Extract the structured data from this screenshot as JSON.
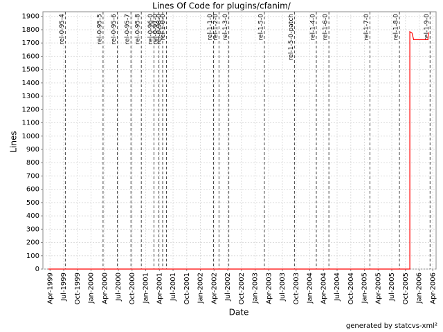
{
  "chart_data": {
    "type": "line",
    "title": "Lines Of Code for plugins/cfanim/",
    "x_label": "Date",
    "y_label": "Lines",
    "footer": "generated by statcvs-xml²",
    "color": "#ff0000",
    "x": [
      1999.22,
      2005.83,
      2005.83,
      2005.87,
      2005.9,
      2006.16,
      2006.17
    ],
    "values": [
      0,
      0,
      1785,
      1775,
      1725,
      1725,
      1780
    ],
    "xlim": [
      1999.12,
      2006.31
    ],
    "ylim": [
      0,
      1935
    ],
    "xticks": [
      {
        "value": 1999.25,
        "label": "Apr-1999"
      },
      {
        "value": 1999.5,
        "label": "Jul-1999"
      },
      {
        "value": 1999.75,
        "label": "Oct-1999"
      },
      {
        "value": 2000.0,
        "label": "Jan-2000"
      },
      {
        "value": 2000.25,
        "label": "Apr-2000"
      },
      {
        "value": 2000.5,
        "label": "Jul-2000"
      },
      {
        "value": 2000.75,
        "label": "Oct-2000"
      },
      {
        "value": 2001.0,
        "label": "Jan-2001"
      },
      {
        "value": 2001.25,
        "label": "Apr-2001"
      },
      {
        "value": 2001.5,
        "label": "Jul-2001"
      },
      {
        "value": 2001.75,
        "label": "Oct-2001"
      },
      {
        "value": 2002.0,
        "label": "Jan-2002"
      },
      {
        "value": 2002.25,
        "label": "Apr-2002"
      },
      {
        "value": 2002.5,
        "label": "Jul-2002"
      },
      {
        "value": 2002.75,
        "label": "Oct-2002"
      },
      {
        "value": 2003.0,
        "label": "Jan-2003"
      },
      {
        "value": 2003.25,
        "label": "Apr-2003"
      },
      {
        "value": 2003.5,
        "label": "Jul-2003"
      },
      {
        "value": 2003.75,
        "label": "Oct-2003"
      },
      {
        "value": 2004.0,
        "label": "Jan-2004"
      },
      {
        "value": 2004.25,
        "label": "Apr-2004"
      },
      {
        "value": 2004.5,
        "label": "Jul-2004"
      },
      {
        "value": 2004.75,
        "label": "Oct-2004"
      },
      {
        "value": 2005.0,
        "label": "Jan-2005"
      },
      {
        "value": 2005.25,
        "label": "Apr-2005"
      },
      {
        "value": 2005.5,
        "label": "Jul-2005"
      },
      {
        "value": 2005.75,
        "label": "Oct-2005"
      },
      {
        "value": 2006.0,
        "label": "Jan-2006"
      },
      {
        "value": 2006.25,
        "label": "Apr-2006"
      }
    ],
    "yticks": [
      0,
      100,
      200,
      300,
      400,
      500,
      600,
      700,
      800,
      900,
      1000,
      1100,
      1200,
      1300,
      1400,
      1500,
      1600,
      1700,
      1800,
      1900
    ],
    "grid": true,
    "markers": [
      {
        "label": "rel-0-95-4",
        "x": 1999.53
      },
      {
        "label": "rel-0-95-5",
        "x": 2000.22
      },
      {
        "label": "rel-0-95-6",
        "x": 2000.48
      },
      {
        "label": "rel-0-95-7",
        "x": 2000.73
      },
      {
        "label": "rel-0-95-8",
        "x": 2000.92
      },
      {
        "label": "rel-0-96-0",
        "x": 2001.15
      },
      {
        "label": "rel-0-97-0",
        "x": 2001.24
      },
      {
        "label": "rel-0-98-0",
        "x": 2001.31
      },
      {
        "label": "rel-1-0-0",
        "x": 2001.38
      },
      {
        "label": "rel-1-1-0",
        "x": 2002.24
      },
      {
        "label": "rel-1-2-0",
        "x": 2002.34
      },
      {
        "label": "rel-1-3-0",
        "x": 2002.52
      },
      {
        "label": "rel-1-5-0",
        "x": 2003.17
      },
      {
        "label": "rel-1-5-0-patch",
        "x": 2003.72
      },
      {
        "label": "rel-1-4-0",
        "x": 2004.12
      },
      {
        "label": "rel-1-6-0",
        "x": 2004.35
      },
      {
        "label": "rel-1-7-0",
        "x": 2005.1
      },
      {
        "label": "rel-1-8-0",
        "x": 2005.64
      },
      {
        "label": "rel-1-9-0",
        "x": 2006.2
      }
    ]
  }
}
